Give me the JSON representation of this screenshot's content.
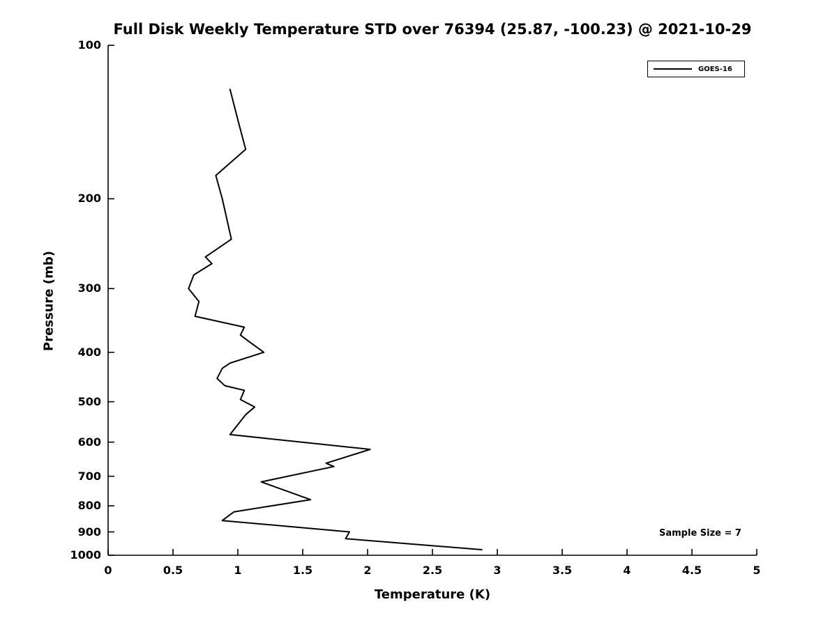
{
  "title": "Full Disk Weekly Temperature STD over 76394 (25.87, -100.23) @ 2021-10-29",
  "annotation": "Sample Size = 7",
  "legend": {
    "position": "top-right",
    "entries": [
      {
        "label": "GOES-16",
        "color": "#000000"
      }
    ]
  },
  "chart_data": {
    "type": "line",
    "title": "Full Disk Weekly Temperature STD over 76394 (25.87, -100.23) @ 2021-10-29",
    "xlabel": "Temperature (K)",
    "ylabel": "Pressure (mb)",
    "xlim": [
      0,
      5
    ],
    "ylim": [
      100,
      1000
    ],
    "y_scale": "log",
    "y_inverted": true,
    "grid": false,
    "x_ticks": [
      0,
      0.5,
      1,
      1.5,
      2,
      2.5,
      3,
      3.5,
      4,
      4.5,
      5
    ],
    "x_tick_labels": [
      "0",
      "0.5",
      "1",
      "1.5",
      "2",
      "2.5",
      "3",
      "3.5",
      "4",
      "4.5",
      "5"
    ],
    "y_ticks": [
      100,
      200,
      300,
      400,
      500,
      600,
      700,
      800,
      900,
      1000
    ],
    "y_tick_labels": [
      "100",
      "200",
      "300",
      "400",
      "500",
      "600",
      "700",
      "800",
      "900",
      "1000"
    ],
    "annotation": "Sample Size = 7",
    "legend_position": "top-right",
    "series": [
      {
        "name": "GOES-16",
        "color": "#000000",
        "line_width": 2,
        "pressure_mb": [
          122,
          140,
          160,
          180,
          200,
          240,
          260,
          268,
          282,
          300,
          318,
          340,
          357,
          370,
          380,
          400,
          420,
          430,
          450,
          465,
          475,
          495,
          512,
          530,
          580,
          620,
          660,
          670,
          718,
          778,
          822,
          855,
          900,
          928,
          975
        ],
        "temperature_k": [
          0.94,
          1.0,
          1.06,
          0.83,
          0.88,
          0.95,
          0.75,
          0.8,
          0.66,
          0.62,
          0.7,
          0.67,
          1.05,
          1.02,
          1.08,
          1.2,
          0.94,
          0.88,
          0.84,
          0.9,
          1.05,
          1.02,
          1.13,
          1.06,
          0.94,
          2.02,
          1.68,
          1.74,
          1.18,
          1.56,
          0.97,
          0.88,
          1.86,
          1.83,
          2.88
        ]
      }
    ]
  }
}
